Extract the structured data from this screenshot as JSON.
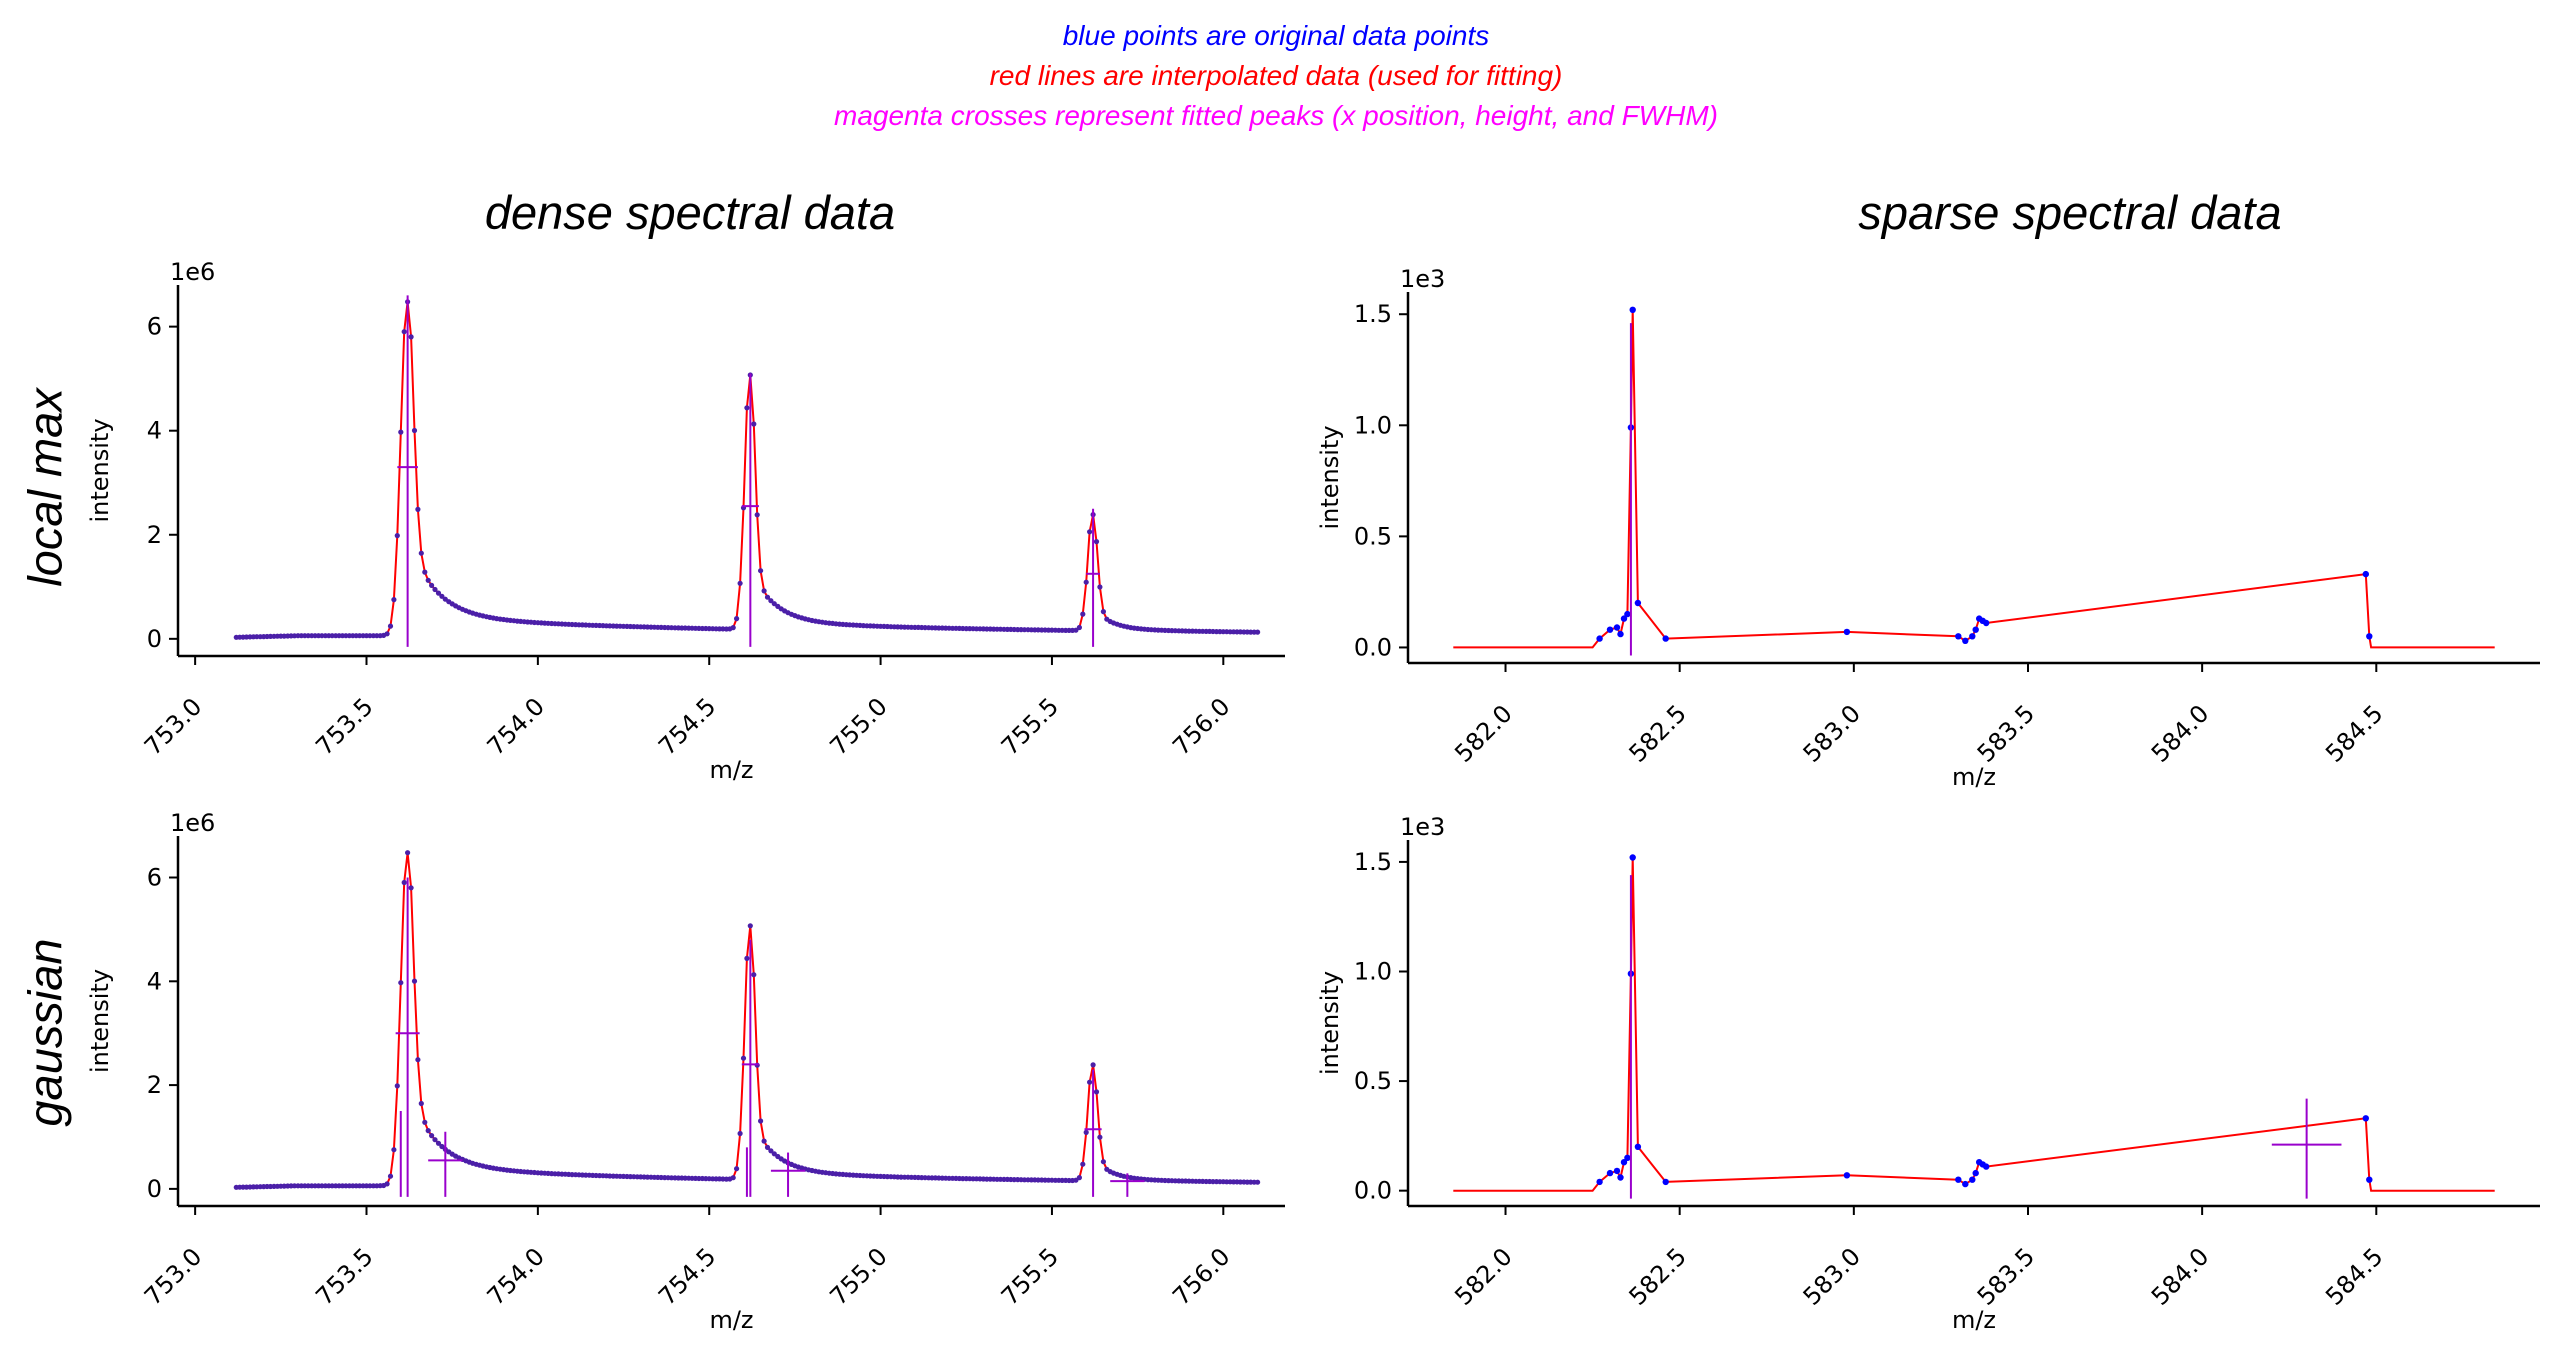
{
  "notes": [
    {
      "text": "blue points are original data points",
      "color": "#0000ff"
    },
    {
      "text": "red lines are interpolated data (used for fitting)",
      "color": "#ff0000"
    },
    {
      "text": "magenta crosses represent fitted peaks (x position, height, and FWHM)",
      "color": "#ff00ff"
    }
  ],
  "column_titles": [
    "dense spectral data",
    "sparse spectral data"
  ],
  "row_titles": [
    "local max",
    "gaussian"
  ],
  "colors": {
    "points": "#0000ff",
    "line": "#ff0000",
    "fit": "#9900cc",
    "dense_points": "#4b1fa8"
  },
  "chart_data": [
    {
      "id": "dense-localmax",
      "type": "line",
      "title": "",
      "xlabel": "m/z",
      "ylabel": "intensity",
      "xlim": [
        752.95,
        756.18
      ],
      "ylim": [
        -0.33,
        6.8
      ],
      "scale_label": "1e6",
      "xticks": [
        753.0,
        753.5,
        754.0,
        754.5,
        755.0,
        755.5,
        756.0
      ],
      "xtick_labels": [
        "753.0",
        "753.5",
        "754.0",
        "754.5",
        "755.0",
        "755.5",
        "756.0"
      ],
      "yticks": [
        0,
        2,
        4,
        6
      ],
      "ytick_labels": [
        "0",
        "2",
        "4",
        "6"
      ],
      "profile": "dense",
      "series": [
        {
          "peaks": [
            {
              "x": 753.62,
              "height": 3.3,
              "fwhm": 0.06
            },
            {
              "x": 754.62,
              "height": 2.55,
              "fwhm": 0.05
            },
            {
              "x": 755.62,
              "height": 1.25,
              "fwhm": 0.04
            }
          ]
        }
      ]
    },
    {
      "id": "sparse-localmax",
      "type": "line",
      "title": "",
      "xlabel": "m/z",
      "ylabel": "intensity",
      "xlim": [
        581.72,
        584.97
      ],
      "ylim": [
        -0.07,
        1.6
      ],
      "scale_label": "1e3",
      "xticks": [
        582.0,
        582.5,
        583.0,
        583.5,
        584.0,
        584.5
      ],
      "xtick_labels": [
        "582.0",
        "582.5",
        "583.0",
        "583.5",
        "584.0",
        "584.5"
      ],
      "yticks": [
        0.0,
        0.5,
        1.0,
        1.5
      ],
      "ytick_labels": [
        "0.0",
        "0.5",
        "1.0",
        "1.5"
      ],
      "profile": "sparse",
      "series": [
        {
          "peaks": [
            {
              "x": 582.36,
              "height": 0.73,
              "fwhm": 0.0
            }
          ]
        }
      ]
    },
    {
      "id": "dense-gaussian",
      "type": "line",
      "title": "",
      "xlabel": "m/z",
      "ylabel": "intensity",
      "xlim": [
        752.95,
        756.18
      ],
      "ylim": [
        -0.33,
        6.8
      ],
      "scale_label": "1e6",
      "xticks": [
        753.0,
        753.5,
        754.0,
        754.5,
        755.0,
        755.5,
        756.0
      ],
      "xtick_labels": [
        "753.0",
        "753.5",
        "754.0",
        "754.5",
        "755.0",
        "755.5",
        "756.0"
      ],
      "yticks": [
        0,
        2,
        4,
        6
      ],
      "ytick_labels": [
        "0",
        "2",
        "4",
        "6"
      ],
      "profile": "dense",
      "series": [
        {
          "peaks": [
            {
              "x": 753.62,
              "height": 3.0,
              "fwhm": 0.07
            },
            {
              "x": 753.6,
              "height": 0.75,
              "fwhm": 0.0
            },
            {
              "x": 753.73,
              "height": 0.55,
              "fwhm": 0.1
            },
            {
              "x": 754.62,
              "height": 2.4,
              "fwhm": 0.05
            },
            {
              "x": 754.61,
              "height": 0.4,
              "fwhm": 0.0
            },
            {
              "x": 754.73,
              "height": 0.35,
              "fwhm": 0.1
            },
            {
              "x": 755.62,
              "height": 1.15,
              "fwhm": 0.05
            },
            {
              "x": 755.72,
              "height": 0.15,
              "fwhm": 0.1
            }
          ]
        }
      ]
    },
    {
      "id": "sparse-gaussian",
      "type": "line",
      "title": "",
      "xlabel": "m/z",
      "ylabel": "intensity",
      "xlim": [
        581.72,
        584.97
      ],
      "ylim": [
        -0.07,
        1.6
      ],
      "scale_label": "1e3",
      "xticks": [
        582.0,
        582.5,
        583.0,
        583.5,
        584.0,
        584.5
      ],
      "xtick_labels": [
        "582.0",
        "582.5",
        "583.0",
        "583.5",
        "584.0",
        "584.5"
      ],
      "yticks": [
        0.0,
        0.5,
        1.0,
        1.5
      ],
      "ytick_labels": [
        "0.0",
        "0.5",
        "1.0",
        "1.5"
      ],
      "profile": "sparse",
      "series": [
        {
          "peaks": [
            {
              "x": 582.36,
              "height": 0.72,
              "fwhm": 0.0
            },
            {
              "x": 584.3,
              "height": 0.21,
              "fwhm": 0.2
            }
          ]
        }
      ]
    }
  ],
  "sparse_points": [
    [
      582.27,
      0.04
    ],
    [
      582.3,
      0.08
    ],
    [
      582.32,
      0.09
    ],
    [
      582.33,
      0.06
    ],
    [
      582.34,
      0.13
    ],
    [
      582.35,
      0.15
    ],
    [
      582.36,
      0.99
    ],
    [
      582.365,
      1.52
    ],
    [
      582.38,
      0.2
    ],
    [
      582.46,
      0.04
    ],
    [
      582.98,
      0.07
    ],
    [
      583.3,
      0.05
    ],
    [
      583.32,
      0.03
    ],
    [
      583.34,
      0.05
    ],
    [
      583.35,
      0.08
    ],
    [
      583.36,
      0.13
    ],
    [
      583.37,
      0.12
    ],
    [
      583.38,
      0.11
    ],
    [
      584.47,
      0.33
    ],
    [
      584.48,
      0.05
    ]
  ]
}
